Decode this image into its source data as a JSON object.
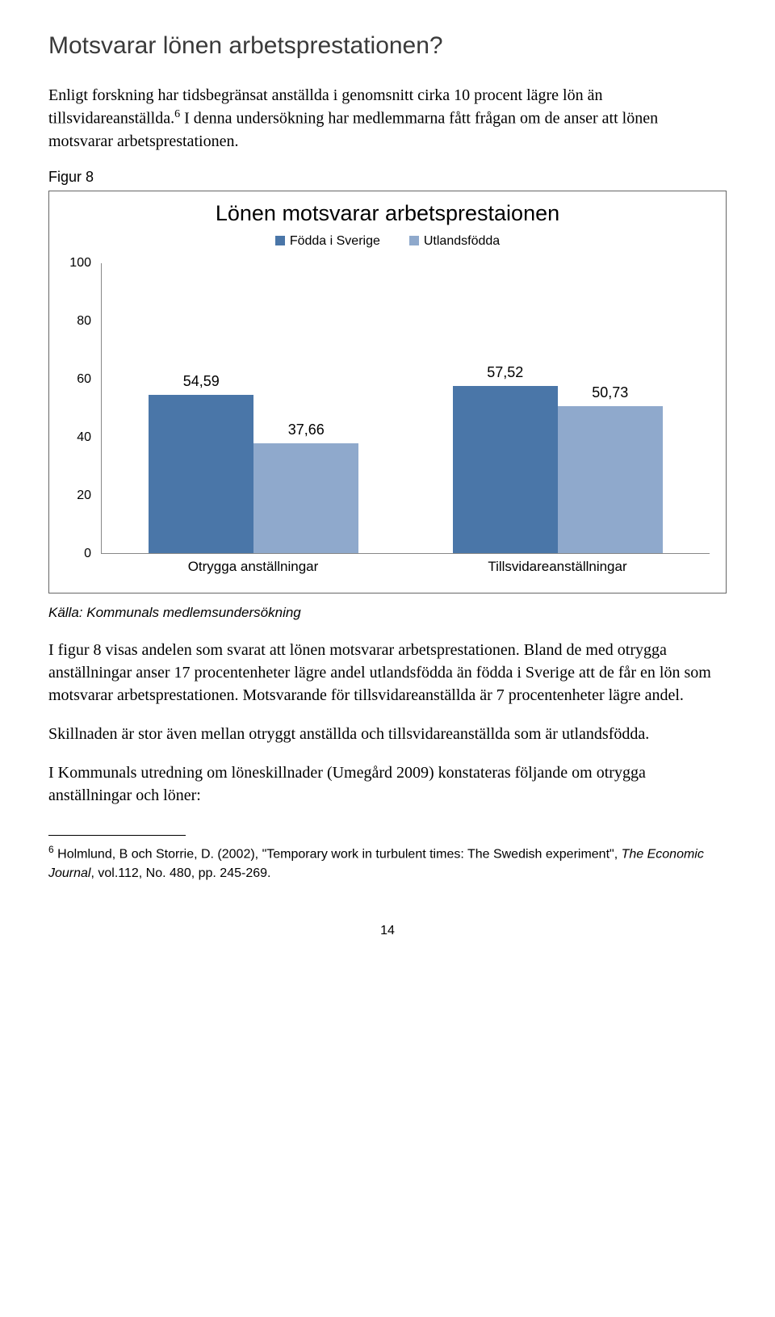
{
  "heading": "Motsvarar lönen arbetsprestationen?",
  "intro_part1": "Enligt forskning har tidsbegränsat anställda i genomsnitt cirka 10 procent lägre lön än tillsvidareanställda.",
  "intro_ref": "6",
  "intro_part2": " I denna undersökning har medlemmarna fått frågan om de anser att lönen motsvarar arbetsprestationen.",
  "figure_label": "Figur 8",
  "chart": {
    "type": "bar",
    "title": "Lönen motsvarar arbetsprestaionen",
    "legend": [
      {
        "label": "Födda i Sverige",
        "color": "#4a76a8"
      },
      {
        "label": "Utlandsfödda",
        "color": "#8fa9cc"
      }
    ],
    "ylim": [
      0,
      100
    ],
    "ytick_step": 20,
    "yticks": [
      0,
      20,
      40,
      60,
      80,
      100
    ],
    "categories": [
      "Otrygga anställningar",
      "Tillsvidareanställningar"
    ],
    "groups": [
      {
        "category": "Otrygga anställningar",
        "bars": [
          {
            "value": 54.59,
            "label": "54,59",
            "color": "#4a76a8"
          },
          {
            "value": 37.66,
            "label": "37,66",
            "color": "#8fa9cc"
          }
        ]
      },
      {
        "category": "Tillsvidareanställningar",
        "bars": [
          {
            "value": 57.52,
            "label": "57,52",
            "color": "#4a76a8"
          },
          {
            "value": 50.73,
            "label": "50,73",
            "color": "#8fa9cc"
          }
        ]
      }
    ]
  },
  "source": "Källa: Kommunals medlemsundersökning",
  "para1": "I figur 8 visas andelen som svarat att lönen motsvarar arbetsprestationen. Bland de med otrygga anställningar anser 17 procentenheter lägre andel utlandsfödda än födda i Sverige att de får en lön som motsvarar arbetsprestationen. Motsvarande för tillsvidareanställda är 7 procentenheter lägre andel.",
  "para2": "Skillnaden är stor även mellan otryggt anställda och tillsvidareanställda som är utlandsfödda.",
  "para3": "I Kommunals utredning om löneskillnader (Umegård 2009) konstateras följande om otrygga anställningar och löner:",
  "footnote_num": "6",
  "footnote_part1": " Holmlund, B och Storrie, D. (2002), \"Temporary work in turbulent times: The Swedish experiment\", ",
  "footnote_italic": "The Economic Journal",
  "footnote_part2": ", vol.112, No. 480, pp. 245-269.",
  "page_number": "14"
}
